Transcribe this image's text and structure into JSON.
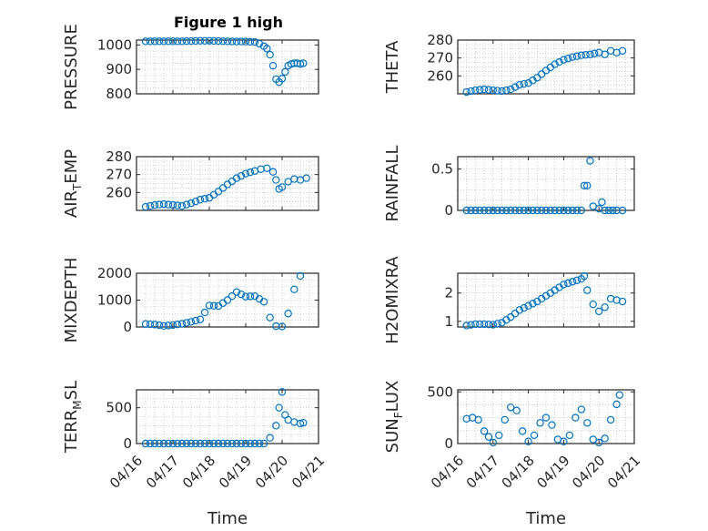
{
  "figure": {
    "title": "Figure 1 high"
  },
  "colors": {
    "series": "#0072BD",
    "axes": "#262626"
  },
  "chart_data": [
    {
      "type": "scatter",
      "id": "pressure",
      "ylabel": "PRESSURE",
      "xlabel": "",
      "xlim": [
        "04/16",
        "04/21"
      ],
      "ylim": [
        800,
        1020
      ],
      "yticks": [
        800,
        900,
        1000
      ],
      "y_tick_labels": [
        "800",
        "900",
        "1000"
      ],
      "grid": true,
      "points": [
        [
          "04/16 06:00",
          1015
        ],
        [
          "04/16 12:00",
          1015
        ],
        [
          "04/16 18:00",
          1015
        ],
        [
          "04/17 00:00",
          1015
        ],
        [
          "04/17 06:00",
          1015
        ],
        [
          "04/17 12:00",
          1016
        ],
        [
          "04/17 18:00",
          1017
        ],
        [
          "04/18 00:00",
          1017
        ],
        [
          "04/18 06:00",
          1016
        ],
        [
          "04/18 12:00",
          1015
        ],
        [
          "04/18 18:00",
          1014
        ],
        [
          "04/19 00:00",
          1014
        ],
        [
          "04/19 06:00",
          1012
        ],
        [
          "04/19 09:00",
          1005
        ],
        [
          "04/19 12:00",
          995
        ],
        [
          "04/19 14:00",
          985
        ],
        [
          "04/19 16:00",
          960
        ],
        [
          "04/19 18:00",
          915
        ],
        [
          "04/19 20:00",
          860
        ],
        [
          "04/19 22:00",
          848
        ],
        [
          "04/20 00:00",
          862
        ],
        [
          "04/20 02:00",
          890
        ],
        [
          "04/20 04:00",
          915
        ],
        [
          "04/20 06:00",
          922
        ],
        [
          "04/20 08:00",
          925
        ],
        [
          "04/20 10:00",
          925
        ],
        [
          "04/20 12:00",
          922
        ],
        [
          "04/20 14:00",
          925
        ]
      ]
    },
    {
      "type": "scatter",
      "id": "theta",
      "ylabel": "THETA",
      "xlabel": "",
      "xlim": [
        "04/16",
        "04/21"
      ],
      "ylim": [
        250,
        280
      ],
      "yticks": [
        260,
        270,
        280
      ],
      "y_tick_labels": [
        "260",
        "270",
        "280"
      ],
      "grid": true,
      "points": [
        [
          "04/16 06:00",
          251
        ],
        [
          "04/16 12:00",
          252
        ],
        [
          "04/16 18:00",
          252.5
        ],
        [
          "04/17 00:00",
          252
        ],
        [
          "04/17 06:00",
          251.5
        ],
        [
          "04/17 12:00",
          252.5
        ],
        [
          "04/17 18:00",
          255
        ],
        [
          "04/18 00:00",
          256
        ],
        [
          "04/18 06:00",
          259
        ],
        [
          "04/18 12:00",
          263
        ],
        [
          "04/18 18:00",
          266.5
        ],
        [
          "04/19 00:00",
          269
        ],
        [
          "04/19 06:00",
          270.5
        ],
        [
          "04/19 12:00",
          271.5
        ],
        [
          "04/19 18:00",
          272
        ],
        [
          "04/20 00:00",
          273
        ],
        [
          "04/20 04:00",
          272
        ],
        [
          "04/20 08:00",
          274
        ],
        [
          "04/20 12:00",
          273
        ],
        [
          "04/20 16:00",
          274
        ]
      ]
    },
    {
      "type": "scatter",
      "id": "air_temp",
      "ylabel": "AIR",
      "ylabel_sub": "T",
      "ylabel_suffix": "EMP",
      "xlabel": "",
      "xlim": [
        "04/16",
        "04/21"
      ],
      "ylim": [
        250,
        280
      ],
      "yticks": [
        260,
        270,
        280
      ],
      "y_tick_labels": [
        "260",
        "270",
        "280"
      ],
      "grid": true,
      "points": [
        [
          "04/16 06:00",
          252
        ],
        [
          "04/16 12:00",
          253
        ],
        [
          "04/16 18:00",
          253.5
        ],
        [
          "04/17 00:00",
          253
        ],
        [
          "04/17 06:00",
          252.5
        ],
        [
          "04/17 12:00",
          254
        ],
        [
          "04/17 18:00",
          256
        ],
        [
          "04/18 00:00",
          257
        ],
        [
          "04/18 06:00",
          260.5
        ],
        [
          "04/18 12:00",
          264.5
        ],
        [
          "04/18 18:00",
          268
        ],
        [
          "04/19 00:00",
          270.5
        ],
        [
          "04/19 06:00",
          272
        ],
        [
          "04/19 10:00",
          273
        ],
        [
          "04/19 14:00",
          273.5
        ],
        [
          "04/19 18:00",
          271.5
        ],
        [
          "04/19 20:00",
          267
        ],
        [
          "04/19 22:00",
          262
        ],
        [
          "04/20 00:00",
          263
        ],
        [
          "04/20 04:00",
          266
        ],
        [
          "04/20 08:00",
          267.5
        ],
        [
          "04/20 12:00",
          267
        ],
        [
          "04/20 16:00",
          268
        ]
      ]
    },
    {
      "type": "scatter",
      "id": "rainfall",
      "ylabel": "RAINFALL",
      "xlabel": "",
      "xlim": [
        "04/16",
        "04/21"
      ],
      "ylim": [
        0,
        0.65
      ],
      "yticks": [
        0,
        0.5
      ],
      "y_tick_labels": [
        "0",
        "0.5"
      ],
      "grid": true,
      "points": [
        [
          "04/16 06:00",
          0
        ],
        [
          "04/16 12:00",
          0
        ],
        [
          "04/17 00:00",
          0
        ],
        [
          "04/17 12:00",
          0
        ],
        [
          "04/18 00:00",
          0
        ],
        [
          "04/18 12:00",
          0
        ],
        [
          "04/19 00:00",
          0
        ],
        [
          "04/19 12:00",
          0
        ],
        [
          "04/19 14:00",
          0.3
        ],
        [
          "04/19 16:00",
          0.3
        ],
        [
          "04/19 18:00",
          0.6
        ],
        [
          "04/19 20:00",
          0.05
        ],
        [
          "04/20 00:00",
          0.02
        ],
        [
          "04/20 02:00",
          0.1
        ],
        [
          "04/20 04:00",
          0
        ],
        [
          "04/20 12:00",
          0
        ],
        [
          "04/20 16:00",
          0
        ]
      ]
    },
    {
      "type": "scatter",
      "id": "mixdepth",
      "ylabel": "MIXDEPTH",
      "xlabel": "",
      "xlim": [
        "04/16",
        "04/21"
      ],
      "ylim": [
        0,
        2000
      ],
      "yticks": [
        0,
        1000,
        2000
      ],
      "y_tick_labels": [
        "0",
        "1000",
        "2000"
      ],
      "grid": true,
      "points": [
        [
          "04/16 06:00",
          110
        ],
        [
          "04/16 12:00",
          90
        ],
        [
          "04/16 18:00",
          40
        ],
        [
          "04/17 00:00",
          70
        ],
        [
          "04/17 06:00",
          120
        ],
        [
          "04/17 12:00",
          190
        ],
        [
          "04/17 18:00",
          280
        ],
        [
          "04/18 00:00",
          800
        ],
        [
          "04/18 06:00",
          780
        ],
        [
          "04/18 12:00",
          1000
        ],
        [
          "04/18 18:00",
          1300
        ],
        [
          "04/19 00:00",
          1130
        ],
        [
          "04/19 06:00",
          1150
        ],
        [
          "04/19 12:00",
          940
        ],
        [
          "04/19 16:00",
          350
        ],
        [
          "04/19 20:00",
          30
        ],
        [
          "04/20 00:00",
          20
        ],
        [
          "04/20 04:00",
          500
        ],
        [
          "04/20 08:00",
          1400
        ],
        [
          "04/20 12:00",
          1900
        ]
      ]
    },
    {
      "type": "scatter",
      "id": "h2omixra",
      "ylabel": "H2OMIXRA",
      "xlabel": "",
      "xlim": [
        "04/16",
        "04/21"
      ],
      "ylim": [
        0.8,
        2.7
      ],
      "yticks": [
        1,
        2
      ],
      "y_tick_labels": [
        "1",
        "2"
      ],
      "grid": true,
      "points": [
        [
          "04/16 06:00",
          0.85
        ],
        [
          "04/16 12:00",
          0.9
        ],
        [
          "04/16 18:00",
          0.9
        ],
        [
          "04/17 00:00",
          0.88
        ],
        [
          "04/17 06:00",
          0.95
        ],
        [
          "04/17 12:00",
          1.15
        ],
        [
          "04/17 18:00",
          1.4
        ],
        [
          "04/18 00:00",
          1.55
        ],
        [
          "04/18 06:00",
          1.7
        ],
        [
          "04/18 12:00",
          1.9
        ],
        [
          "04/18 18:00",
          2.1
        ],
        [
          "04/19 00:00",
          2.3
        ],
        [
          "04/19 06:00",
          2.4
        ],
        [
          "04/19 12:00",
          2.5
        ],
        [
          "04/19 14:00",
          2.6
        ],
        [
          "04/19 16:00",
          2.1
        ],
        [
          "04/19 20:00",
          1.6
        ],
        [
          "04/20 00:00",
          1.35
        ],
        [
          "04/20 04:00",
          1.5
        ],
        [
          "04/20 08:00",
          1.8
        ],
        [
          "04/20 12:00",
          1.75
        ],
        [
          "04/20 16:00",
          1.7
        ]
      ]
    },
    {
      "type": "scatter",
      "id": "terr_msl",
      "ylabel": "TERR",
      "ylabel_sub": "M",
      "ylabel_suffix": "SL",
      "xlabel": "Time",
      "xlim": [
        "04/16",
        "04/21"
      ],
      "ylim": [
        0,
        750
      ],
      "yticks": [
        0,
        500
      ],
      "y_tick_labels": [
        "0",
        "500"
      ],
      "grid": true,
      "x_tick_labels": [
        "04/16",
        "04/17",
        "04/18",
        "04/19",
        "04/20",
        "04/21"
      ],
      "points": [
        [
          "04/16 06:00",
          0
        ],
        [
          "04/16 12:00",
          0
        ],
        [
          "04/17 00:00",
          0
        ],
        [
          "04/17 12:00",
          0
        ],
        [
          "04/18 00:00",
          0
        ],
        [
          "04/18 12:00",
          0
        ],
        [
          "04/19 00:00",
          0
        ],
        [
          "04/19 12:00",
          0
        ],
        [
          "04/19 16:00",
          80
        ],
        [
          "04/19 20:00",
          250
        ],
        [
          "04/19 22:00",
          500
        ],
        [
          "04/20 00:00",
          720
        ],
        [
          "04/20 02:00",
          400
        ],
        [
          "04/20 04:00",
          330
        ],
        [
          "04/20 08:00",
          300
        ],
        [
          "04/20 12:00",
          280
        ],
        [
          "04/20 14:00",
          290
        ]
      ]
    },
    {
      "type": "scatter",
      "id": "sun_flux",
      "ylabel": "SUN",
      "ylabel_sub": "F",
      "ylabel_suffix": "LUX",
      "xlabel": "Time",
      "xlim": [
        "04/16",
        "04/21"
      ],
      "ylim": [
        0,
        520
      ],
      "yticks": [
        0,
        500
      ],
      "y_tick_labels": [
        "0",
        "500"
      ],
      "grid": true,
      "x_tick_labels": [
        "04/16",
        "04/17",
        "04/18",
        "04/19",
        "04/20",
        "04/21"
      ],
      "points": [
        [
          "04/16 06:00",
          240
        ],
        [
          "04/16 10:00",
          250
        ],
        [
          "04/16 14:00",
          230
        ],
        [
          "04/16 18:00",
          120
        ],
        [
          "04/17 00:00",
          10
        ],
        [
          "04/17 04:00",
          80
        ],
        [
          "04/17 08:00",
          230
        ],
        [
          "04/17 12:00",
          350
        ],
        [
          "04/17 16:00",
          320
        ],
        [
          "04/17 20:00",
          120
        ],
        [
          "04/18 00:00",
          20
        ],
        [
          "04/18 04:00",
          80
        ],
        [
          "04/18 08:00",
          200
        ],
        [
          "04/18 12:00",
          250
        ],
        [
          "04/18 16:00",
          180
        ],
        [
          "04/18 20:00",
          40
        ],
        [
          "04/19 00:00",
          20
        ],
        [
          "04/19 04:00",
          80
        ],
        [
          "04/19 08:00",
          250
        ],
        [
          "04/19 12:00",
          330
        ],
        [
          "04/19 16:00",
          200
        ],
        [
          "04/19 20:00",
          40
        ],
        [
          "04/20 00:00",
          10
        ],
        [
          "04/20 04:00",
          50
        ],
        [
          "04/20 08:00",
          230
        ],
        [
          "04/20 12:00",
          380
        ],
        [
          "04/20 14:00",
          470
        ]
      ]
    }
  ]
}
